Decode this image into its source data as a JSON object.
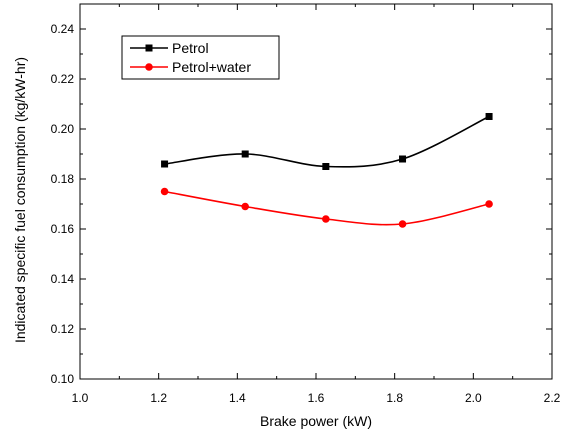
{
  "chart_data": {
    "type": "line",
    "xlabel": "Brake power (kW)",
    "ylabel": "Indicated specific fuel consumption (kg/kW-hr)",
    "xlim": [
      1.0,
      2.2
    ],
    "ylim": [
      0.1,
      0.25
    ],
    "xticks": [
      "1.0",
      "1.2",
      "1.4",
      "1.6",
      "1.8",
      "2.0",
      "2.2"
    ],
    "yticks": [
      "0.10",
      "0.12",
      "0.14",
      "0.16",
      "0.18",
      "0.20",
      "0.22",
      "0.24"
    ],
    "grid": false,
    "legend_position": "top-left",
    "series": [
      {
        "name": "Petrol",
        "color": "#000000",
        "marker": "square",
        "x": [
          1.215,
          1.42,
          1.625,
          1.82,
          2.04
        ],
        "y": [
          0.186,
          0.19,
          0.185,
          0.188,
          0.205
        ]
      },
      {
        "name": "Petrol+water",
        "color": "#ff0000",
        "marker": "circle",
        "x": [
          1.215,
          1.42,
          1.625,
          1.82,
          2.04
        ],
        "y": [
          0.175,
          0.169,
          0.164,
          0.162,
          0.17
        ]
      }
    ]
  }
}
